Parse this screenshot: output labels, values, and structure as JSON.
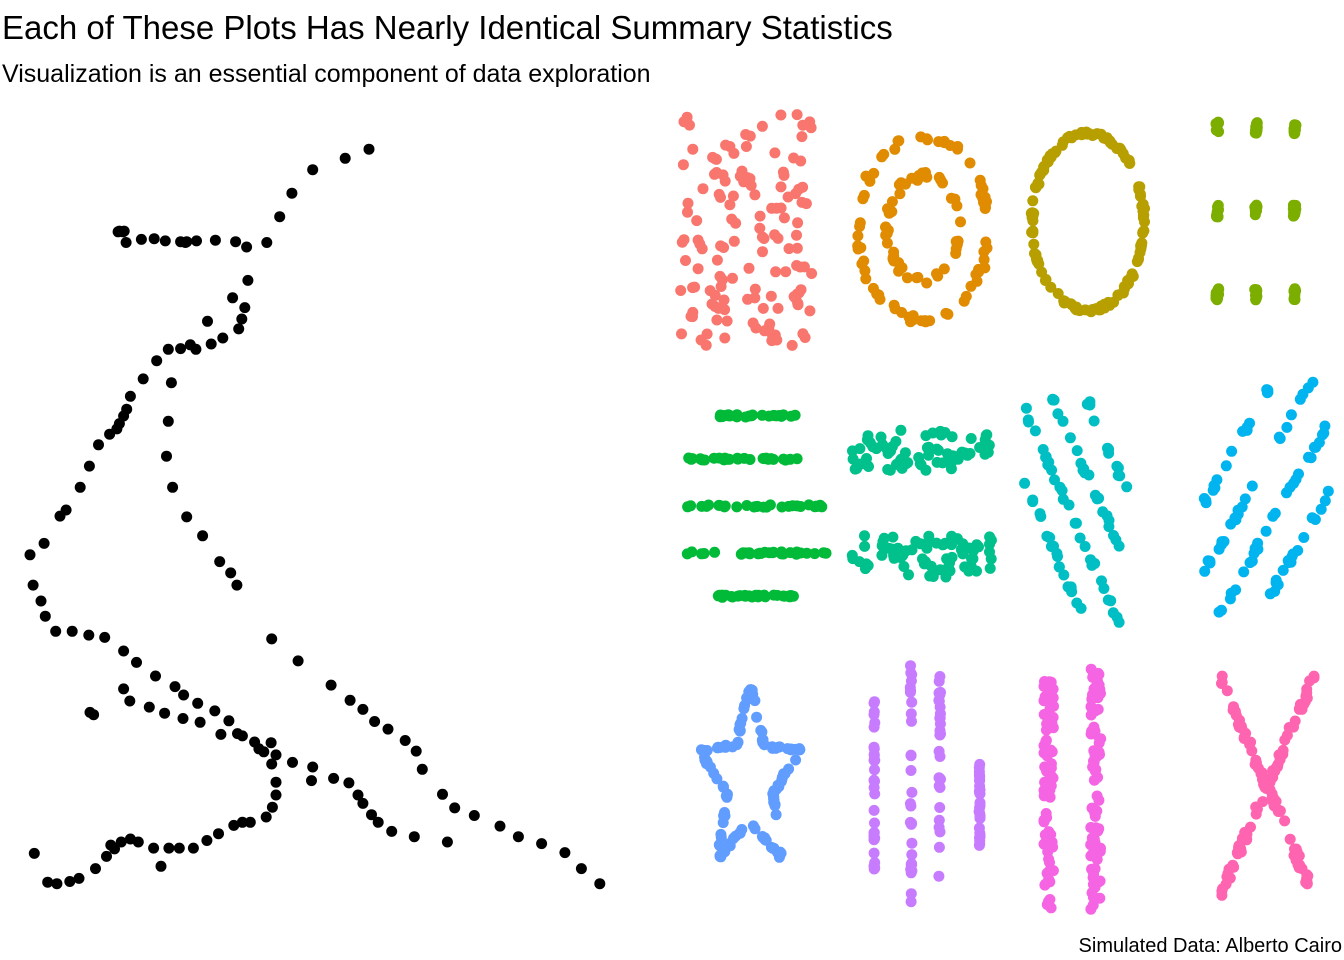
{
  "title": "Each of These Plots Has Nearly Identical Summary Statistics",
  "subtitle": "Visualization is an essential component of data exploration",
  "caption": "Simulated Data: Alberto Cairo",
  "chart_data": {
    "type": "scatter",
    "title": "Each of These Plots Has Nearly Identical Summary Statistics",
    "subtitle": "Visualization is an essential component of data exploration",
    "caption": "Simulated Data: Alberto Cairo",
    "xlabel": "",
    "ylabel": "",
    "grid": false,
    "axes": "hidden",
    "legend": "none",
    "xlim": [
      0,
      100
    ],
    "ylim": [
      0,
      100
    ],
    "series": [
      {
        "color": "#000000",
        "points": [
          [
            55.4,
            97.2
          ],
          [
            51.5,
            96.0
          ],
          [
            46.2,
            94.5
          ],
          [
            42.8,
            91.4
          ],
          [
            40.8,
            88.3
          ],
          [
            38.7,
            84.9
          ],
          [
            35.6,
            79.9
          ],
          [
            33.1,
            77.6
          ],
          [
            29.0,
            74.5
          ],
          [
            26.2,
            71.4
          ],
          [
            23.1,
            66.4
          ],
          [
            22.6,
            61.3
          ],
          [
            22.3,
            56.7
          ],
          [
            23.3,
            52.6
          ],
          [
            25.6,
            48.7
          ],
          [
            28.2,
            46.2
          ],
          [
            31.0,
            42.8
          ],
          [
            32.8,
            41.3
          ],
          [
            33.8,
            39.7
          ],
          [
            39.5,
            32.6
          ],
          [
            43.8,
            29.7
          ],
          [
            49.2,
            26.5
          ],
          [
            52.3,
            24.5
          ],
          [
            54.4,
            23.3
          ],
          [
            56.3,
            21.7
          ],
          [
            58.5,
            20.7
          ],
          [
            61.3,
            19.2
          ],
          [
            63.1,
            17.8
          ],
          [
            64.1,
            15.4
          ],
          [
            67.4,
            12.1
          ],
          [
            69.4,
            10.3
          ],
          [
            72.6,
            9.3
          ],
          [
            76.8,
            7.9
          ],
          [
            79.8,
            6.5
          ],
          [
            83.6,
            5.6
          ],
          [
            87.4,
            4.4
          ],
          [
            90.1,
            2.3
          ],
          [
            93.1,
            0.3
          ],
          [
            35.4,
            84.3
          ],
          [
            33.6,
            85.0
          ],
          [
            30.3,
            85.2
          ],
          [
            27.2,
            85.1
          ],
          [
            25.4,
            84.9
          ],
          [
            25.6,
            85.0
          ],
          [
            24.6,
            85.0
          ],
          [
            22.1,
            85.1
          ],
          [
            20.3,
            85.4
          ],
          [
            18.2,
            85.3
          ],
          [
            15.7,
            84.9
          ],
          [
            15.2,
            86.3
          ],
          [
            14.6,
            86.4
          ],
          [
            14.4,
            86.3
          ],
          [
            15.4,
            86.4
          ],
          [
            35.1,
            76.3
          ],
          [
            34.6,
            74.8
          ],
          [
            34.1,
            73.5
          ],
          [
            31.5,
            72.3
          ],
          [
            29.6,
            71.5
          ],
          [
            27.1,
            70.8
          ],
          [
            24.6,
            70.9
          ],
          [
            22.6,
            70.8
          ],
          [
            20.7,
            69.3
          ],
          [
            18.5,
            66.9
          ],
          [
            16.4,
            64.6
          ],
          [
            15.8,
            62.9
          ],
          [
            15.3,
            62.0
          ],
          [
            14.6,
            61.0
          ],
          [
            14.2,
            60.3
          ],
          [
            13.0,
            59.6
          ],
          [
            11.2,
            58.2
          ],
          [
            9.7,
            55.4
          ],
          [
            8.2,
            52.6
          ],
          [
            5.9,
            49.6
          ],
          [
            4.9,
            48.8
          ],
          [
            2.3,
            45.2
          ],
          [
            0.0,
            43.7
          ],
          [
            0.5,
            39.7
          ],
          [
            1.8,
            37.6
          ],
          [
            2.5,
            35.6
          ],
          [
            4.2,
            33.6
          ],
          [
            6.9,
            33.6
          ],
          [
            9.6,
            33.1
          ],
          [
            12.2,
            32.8
          ],
          [
            15.3,
            31.0
          ],
          [
            17.4,
            29.5
          ],
          [
            20.5,
            27.7
          ],
          [
            23.7,
            26.3
          ],
          [
            25.1,
            25.2
          ],
          [
            27.4,
            24.1
          ],
          [
            30.2,
            23.1
          ],
          [
            32.5,
            21.8
          ],
          [
            34.7,
            19.8
          ],
          [
            37.4,
            18.1
          ],
          [
            40.2,
            17.3
          ],
          [
            42.9,
            16.3
          ],
          [
            46.2,
            15.7
          ],
          [
            49.6,
            14.2
          ],
          [
            52.1,
            13.6
          ],
          [
            53.6,
            12.0
          ],
          [
            54.4,
            10.9
          ],
          [
            55.8,
            9.4
          ],
          [
            56.9,
            8.4
          ],
          [
            59.1,
            7.2
          ],
          [
            62.8,
            6.5
          ],
          [
            68.2,
            5.8
          ],
          [
            15.3,
            26.0
          ],
          [
            16.3,
            24.4
          ],
          [
            19.5,
            23.6
          ],
          [
            22.0,
            22.8
          ],
          [
            25.0,
            22.1
          ],
          [
            27.8,
            21.6
          ],
          [
            31.2,
            20.0
          ],
          [
            33.9,
            20.1
          ],
          [
            36.7,
            19.0
          ],
          [
            39.4,
            18.9
          ],
          [
            38.2,
            17.7
          ],
          [
            39.5,
            16.1
          ],
          [
            40.2,
            13.7
          ],
          [
            40.2,
            12.0
          ],
          [
            39.6,
            10.4
          ],
          [
            38.6,
            9.1
          ],
          [
            36.0,
            8.4
          ],
          [
            34.7,
            8.4
          ],
          [
            33.3,
            8.0
          ],
          [
            30.8,
            6.9
          ],
          [
            28.9,
            6.0
          ],
          [
            26.7,
            5.0
          ],
          [
            24.4,
            5.0
          ],
          [
            22.7,
            5.0
          ],
          [
            20.2,
            5.0
          ],
          [
            17.7,
            5.8
          ],
          [
            16.4,
            6.2
          ],
          [
            14.9,
            5.8
          ],
          [
            13.8,
            4.9
          ],
          [
            12.5,
            3.9
          ],
          [
            10.7,
            2.3
          ],
          [
            8.0,
            1.0
          ],
          [
            6.5,
            0.6
          ],
          [
            4.4,
            0.3
          ],
          [
            2.9,
            0.5
          ],
          [
            0.7,
            4.3
          ],
          [
            10.4,
            22.6
          ],
          [
            9.8,
            22.9
          ],
          [
            13.2,
            5.4
          ],
          [
            21.4,
            2.6
          ],
          [
            46.0,
            13.9
          ]
        ]
      },
      {
        "color": "#F8766D",
        "shape": "away",
        "points": []
      },
      {
        "color": "#E08B00",
        "shape": "bullseye",
        "points": []
      },
      {
        "color": "#B79F00",
        "shape": "circle",
        "points": []
      },
      {
        "color": "#7CAE00",
        "shape": "dots",
        "points": []
      },
      {
        "color": "#00BA38",
        "shape": "h_lines",
        "points": []
      },
      {
        "color": "#00C08B",
        "shape": "high_lines",
        "points": []
      },
      {
        "color": "#00BFC4",
        "shape": "slant_down",
        "points": []
      },
      {
        "color": "#00B4F0",
        "shape": "slant_up",
        "points": []
      },
      {
        "color": "#619CFF",
        "shape": "star",
        "points": []
      },
      {
        "color": "#C77CFF",
        "shape": "v_lines",
        "points": []
      },
      {
        "color": "#F564E3",
        "shape": "wide_lines",
        "points": []
      },
      {
        "color": "#FF64B0",
        "shape": "x_shape",
        "points": []
      }
    ]
  }
}
